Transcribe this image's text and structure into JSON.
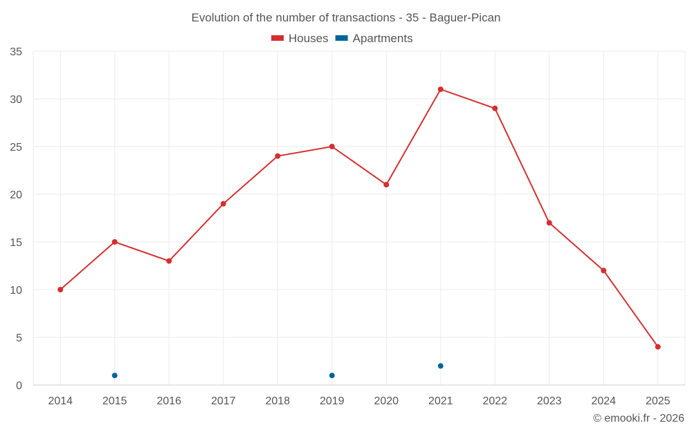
{
  "chart_data": {
    "type": "line",
    "title": "Evolution of the number of transactions - 35 - Baguer-Pican",
    "categories": [
      "2014",
      "2015",
      "2016",
      "2017",
      "2018",
      "2019",
      "2020",
      "2021",
      "2022",
      "2023",
      "2024",
      "2025"
    ],
    "ylim": [
      0,
      35
    ],
    "yticks": [
      0,
      5,
      10,
      15,
      20,
      25,
      30,
      35
    ],
    "grid": true,
    "legend_position": "top-center",
    "series": [
      {
        "name": "Houses",
        "color": "#d32f2f",
        "style": "line-markers",
        "values": [
          10,
          15,
          13,
          19,
          24,
          25,
          21,
          31,
          29,
          17,
          12,
          4
        ]
      },
      {
        "name": "Apartments",
        "color": "#00669a",
        "style": "markers",
        "values": [
          null,
          1,
          null,
          null,
          null,
          1,
          null,
          2,
          null,
          null,
          null,
          null
        ]
      }
    ],
    "credit": "© emooki.fr - 2026"
  }
}
